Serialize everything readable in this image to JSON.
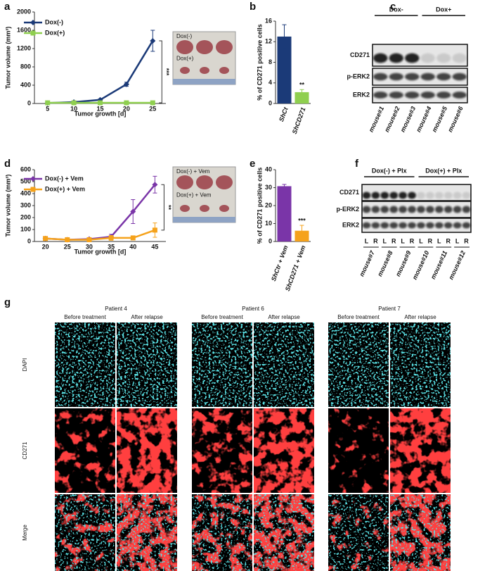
{
  "chart_data": [
    {
      "type": "line",
      "label": "a",
      "y_label": "Tumor volume (mm³)",
      "x_label": "Tumor growth [d]",
      "categories": [
        "5",
        "10",
        "15",
        "20",
        "25"
      ],
      "series": [
        {
          "name": "Dox(-)",
          "color": "#1b3a78",
          "marker": "diamond",
          "values": [
            10,
            30,
            80,
            420,
            1370
          ],
          "errors": [
            5,
            10,
            20,
            45,
            230
          ]
        },
        {
          "name": "Dox(+)",
          "color": "#8fcf4f",
          "marker": "square",
          "values": [
            15,
            15,
            15,
            15,
            15
          ],
          "errors": [
            5,
            5,
            5,
            5,
            5
          ]
        }
      ],
      "ylim": [
        0,
        2000
      ],
      "yticks": [
        0,
        400,
        800,
        1200,
        1600,
        2000
      ],
      "annotation": "***",
      "photo_labels": [
        "Dox(-)",
        "Dox(+)"
      ]
    },
    {
      "type": "bar",
      "label": "b",
      "y_label": "% of CD271 positive cells",
      "categories": [
        "ShCt",
        "ShCD271"
      ],
      "values": [
        13,
        2.2
      ],
      "errors": [
        2.3,
        0.5
      ],
      "colors": [
        "#1b3a78",
        "#8fcf4f"
      ],
      "ylim": [
        0,
        16
      ],
      "yticks": [
        0,
        4,
        8,
        12,
        16
      ],
      "annotation": "**"
    },
    {
      "type": "line",
      "label": "d",
      "y_label": "Tumor volume (mm³)",
      "x_label": "Tumor growth [d]",
      "categories": [
        "20",
        "25",
        "30",
        "35",
        "40",
        "45"
      ],
      "series": [
        {
          "name": "Dox(-) + Vem",
          "color": "#7a35a8",
          "marker": "diamond",
          "values": [
            25,
            15,
            20,
            40,
            250,
            475
          ],
          "errors": [
            10,
            5,
            8,
            20,
            100,
            70
          ]
        },
        {
          "name": "Dox(+) + Vem",
          "color": "#f5a21b",
          "marker": "square",
          "values": [
            25,
            15,
            15,
            30,
            30,
            95
          ],
          "errors": [
            15,
            10,
            10,
            20,
            15,
            60
          ]
        }
      ],
      "ylim": [
        0,
        600
      ],
      "yticks": [
        0,
        100,
        200,
        300,
        400,
        500,
        600
      ],
      "annotation": "**",
      "photo_labels": [
        "Dox(-) + Vem",
        "Dox(+) + Vem"
      ]
    },
    {
      "type": "bar",
      "label": "e",
      "y_label": "% of CD271 positive cells",
      "categories": [
        "ShCtr + Vem",
        "ShCD271 + Vem"
      ],
      "values": [
        30.8,
        6
      ],
      "errors": [
        1,
        3
      ],
      "colors": [
        "#7a35a8",
        "#f5a21b"
      ],
      "ylim": [
        0,
        40
      ],
      "yticks": [
        0,
        10,
        20,
        30,
        40
      ],
      "annotation": "***"
    }
  ],
  "blots": [
    {
      "label": "c",
      "groups": [
        "Dox-",
        "Dox+"
      ],
      "rows": [
        "CD271",
        "p-ERK2",
        "ERK2"
      ],
      "lanes": [
        "mouse#1",
        "mouse#2",
        "mouse#3",
        "mouse#4",
        "mouse#5",
        "mouse#6"
      ]
    },
    {
      "label": "f",
      "groups": [
        "Dox(-) + Plx",
        "Dox(+) + Plx"
      ],
      "rows": [
        "CD271",
        "p-ERK2",
        "ERK2"
      ],
      "sides": [
        "L",
        "R"
      ],
      "lanes": [
        "mouse#7",
        "mouse#8",
        "mouse#9",
        "mouse#10",
        "mouse#11",
        "mouse#12"
      ]
    }
  ],
  "microscopy": {
    "label": "g",
    "patients": [
      "Patient 4",
      "Patient 6",
      "Patient 7"
    ],
    "conditions": [
      "Before treatment",
      "After relapse"
    ],
    "stains": [
      "DAPI",
      "CD271",
      "Merge"
    ]
  }
}
